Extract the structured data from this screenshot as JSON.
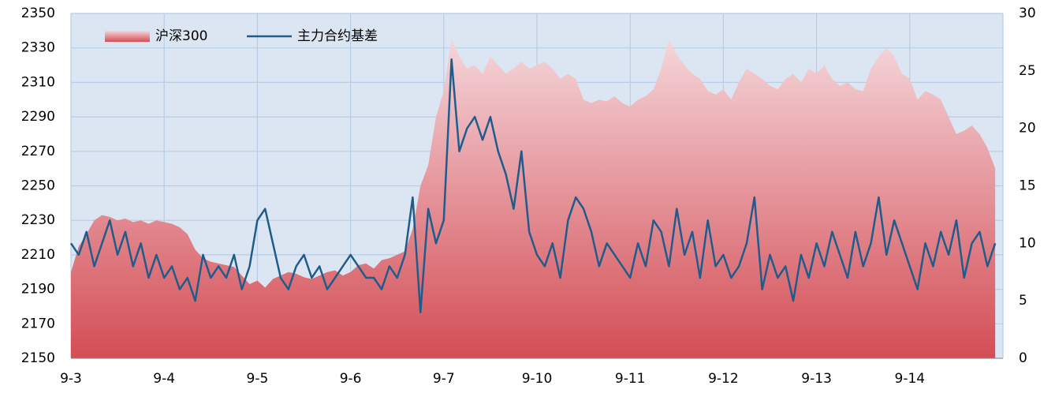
{
  "chart_data": {
    "type": "area",
    "categories": [
      "9-3",
      null,
      null,
      null,
      null,
      null,
      null,
      null,
      null,
      null,
      null,
      null,
      "9-4",
      null,
      null,
      null,
      null,
      null,
      null,
      null,
      null,
      null,
      null,
      null,
      "9-5",
      null,
      null,
      null,
      null,
      null,
      null,
      null,
      null,
      null,
      null,
      null,
      "9-6",
      null,
      null,
      null,
      null,
      null,
      null,
      null,
      null,
      null,
      null,
      null,
      "9-7",
      null,
      null,
      null,
      null,
      null,
      null,
      null,
      null,
      null,
      null,
      null,
      "9-10",
      null,
      null,
      null,
      null,
      null,
      null,
      null,
      null,
      null,
      null,
      null,
      "9-11",
      null,
      null,
      null,
      null,
      null,
      null,
      null,
      null,
      null,
      null,
      null,
      "9-12",
      null,
      null,
      null,
      null,
      null,
      null,
      null,
      null,
      null,
      null,
      null,
      "9-13",
      null,
      null,
      null,
      null,
      null,
      null,
      null,
      null,
      null,
      null,
      null,
      "9-14",
      null,
      null,
      null,
      null,
      null,
      null,
      null,
      null,
      null,
      null,
      null
    ],
    "series": [
      {
        "name": "沪深300",
        "type": "area",
        "color": "#d44d55",
        "values": [
          2200,
          2215,
          2222,
          2230,
          2233,
          2232,
          2230,
          2231,
          2229,
          2230,
          2228,
          2230,
          2229,
          2228,
          2226,
          2222,
          2213,
          2208,
          2206,
          2205,
          2204,
          2203,
          2198,
          2193,
          2195,
          2191,
          2196,
          2198,
          2200,
          2199,
          2197,
          2196,
          2198,
          2200,
          2201,
          2198,
          2200,
          2204,
          2205,
          2202,
          2207,
          2208,
          2210,
          2212,
          2225,
          2250,
          2262,
          2290,
          2305,
          2335,
          2325,
          2318,
          2320,
          2315,
          2325,
          2320,
          2315,
          2318,
          2322,
          2318,
          2320,
          2322,
          2318,
          2312,
          2315,
          2312,
          2300,
          2298,
          2300,
          2299,
          2302,
          2298,
          2296,
          2300,
          2302,
          2306,
          2318,
          2335,
          2326,
          2320,
          2315,
          2312,
          2305,
          2303,
          2306,
          2300,
          2310,
          2318,
          2315,
          2312,
          2308,
          2306,
          2312,
          2315,
          2310,
          2318,
          2315,
          2320,
          2312,
          2308,
          2310,
          2306,
          2305,
          2318,
          2325,
          2330,
          2325,
          2315,
          2312,
          2300,
          2305,
          2303,
          2300,
          2290,
          2280,
          2282,
          2285,
          2280,
          2272,
          2260
        ]
      },
      {
        "name": "主力合约基差",
        "type": "line",
        "axis": "y2",
        "color": "#1f5c8b",
        "values": [
          10,
          9,
          11,
          8,
          10,
          12,
          9,
          11,
          8,
          10,
          7,
          9,
          7,
          8,
          6,
          7,
          5,
          9,
          7,
          8,
          7,
          9,
          6,
          8,
          12,
          13,
          10,
          7,
          6,
          8,
          9,
          7,
          8,
          6,
          7,
          8,
          9,
          8,
          7,
          7,
          6,
          8,
          7,
          9,
          14,
          4,
          13,
          10,
          12,
          26,
          18,
          20,
          21,
          19,
          21,
          18,
          16,
          13,
          18,
          11,
          9,
          8,
          10,
          7,
          12,
          14,
          13,
          11,
          8,
          10,
          9,
          8,
          7,
          10,
          8,
          12,
          11,
          8,
          13,
          9,
          11,
          7,
          12,
          8,
          9,
          7,
          8,
          10,
          14,
          6,
          9,
          7,
          8,
          5,
          9,
          7,
          10,
          8,
          11,
          9,
          7,
          11,
          8,
          10,
          14,
          9,
          12,
          10,
          8,
          6,
          10,
          8,
          11,
          9,
          12,
          7,
          10,
          11,
          8,
          10
        ]
      }
    ],
    "ylim": [
      2150,
      2350
    ],
    "yticks": [
      2150,
      2170,
      2190,
      2210,
      2230,
      2250,
      2270,
      2290,
      2310,
      2330,
      2350
    ],
    "y2lim": [
      0,
      30
    ],
    "y2ticks": [
      0,
      5,
      10,
      15,
      20,
      25,
      30
    ],
    "grid": true,
    "legend": "top-left"
  }
}
